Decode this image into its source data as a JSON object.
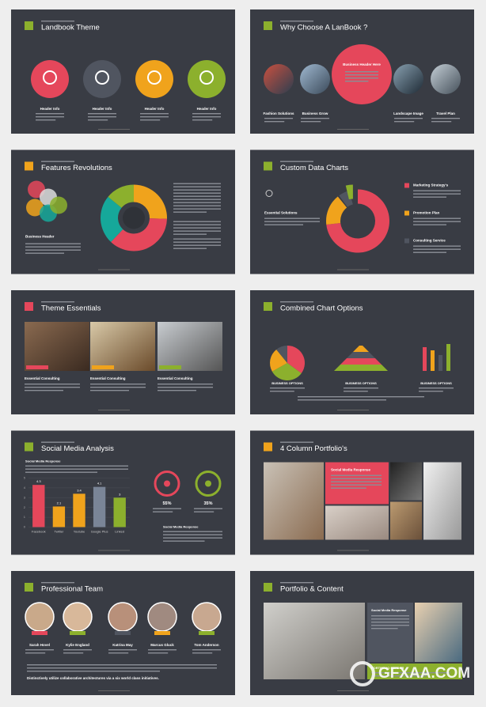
{
  "slides": [
    {
      "title": "Landbook Theme",
      "items": [
        "Header Info",
        "Header Info",
        "Header Info",
        "Header Info"
      ]
    },
    {
      "title": "Why Choose A LanBook ?",
      "highlight": "Business Header Here",
      "items": [
        "Fashion Solutions",
        "Business Grow",
        "Landscape Image",
        "Travel Plan"
      ]
    },
    {
      "title": "Features Revolutions",
      "items": [
        "Business Header"
      ]
    },
    {
      "title": "Custom Data Charts",
      "items": [
        "Essential Solutions",
        "Marketing Strategy's",
        "Promotion Plan",
        "Consulting Service"
      ]
    },
    {
      "title": "Theme Essentials",
      "items": [
        "Essential Consulting",
        "Essential Consulting",
        "Essential Consulting"
      ]
    },
    {
      "title": "Combined Chart Options",
      "items": [
        "BUSINESS OPTIONS",
        "BUSINESS OPTIONS",
        "BUSINESS OPTIONS"
      ]
    },
    {
      "title": "Social Media Analysis",
      "items": [
        "Social Media Response",
        "Social Media Response"
      ],
      "percents": [
        "55%",
        "35%"
      ],
      "chart": {
        "type": "bar",
        "categories": [
          "Facebook",
          "Twitter",
          "Youtube",
          "Google Plus",
          "Linked"
        ],
        "values": [
          4.3,
          2.1,
          3.4,
          4.1,
          3
        ],
        "colors": [
          "#e5475b",
          "#f0a31c",
          "#f0a31c",
          "#7a8597",
          "#8cb02d"
        ],
        "ylim": [
          0,
          5
        ],
        "yticks": [
          0,
          1,
          2,
          3,
          4,
          5
        ]
      }
    },
    {
      "title": "4 Column Portfolio's",
      "items": [
        "Social Media Response"
      ]
    },
    {
      "title": "Professional Team",
      "items": [
        "Sarah Hovel",
        "Kylie England",
        "Katrina May",
        "Marcus Gluck",
        "Tom Anderson"
      ],
      "footer": "Distinctively utilize collaborative architectures via a six world class initiatives."
    },
    {
      "title": "Portfolio & Content",
      "items": [
        "Social Media Response",
        "PORTFOLIO HEADER"
      ]
    }
  ],
  "watermark": "GFXAA.COM"
}
